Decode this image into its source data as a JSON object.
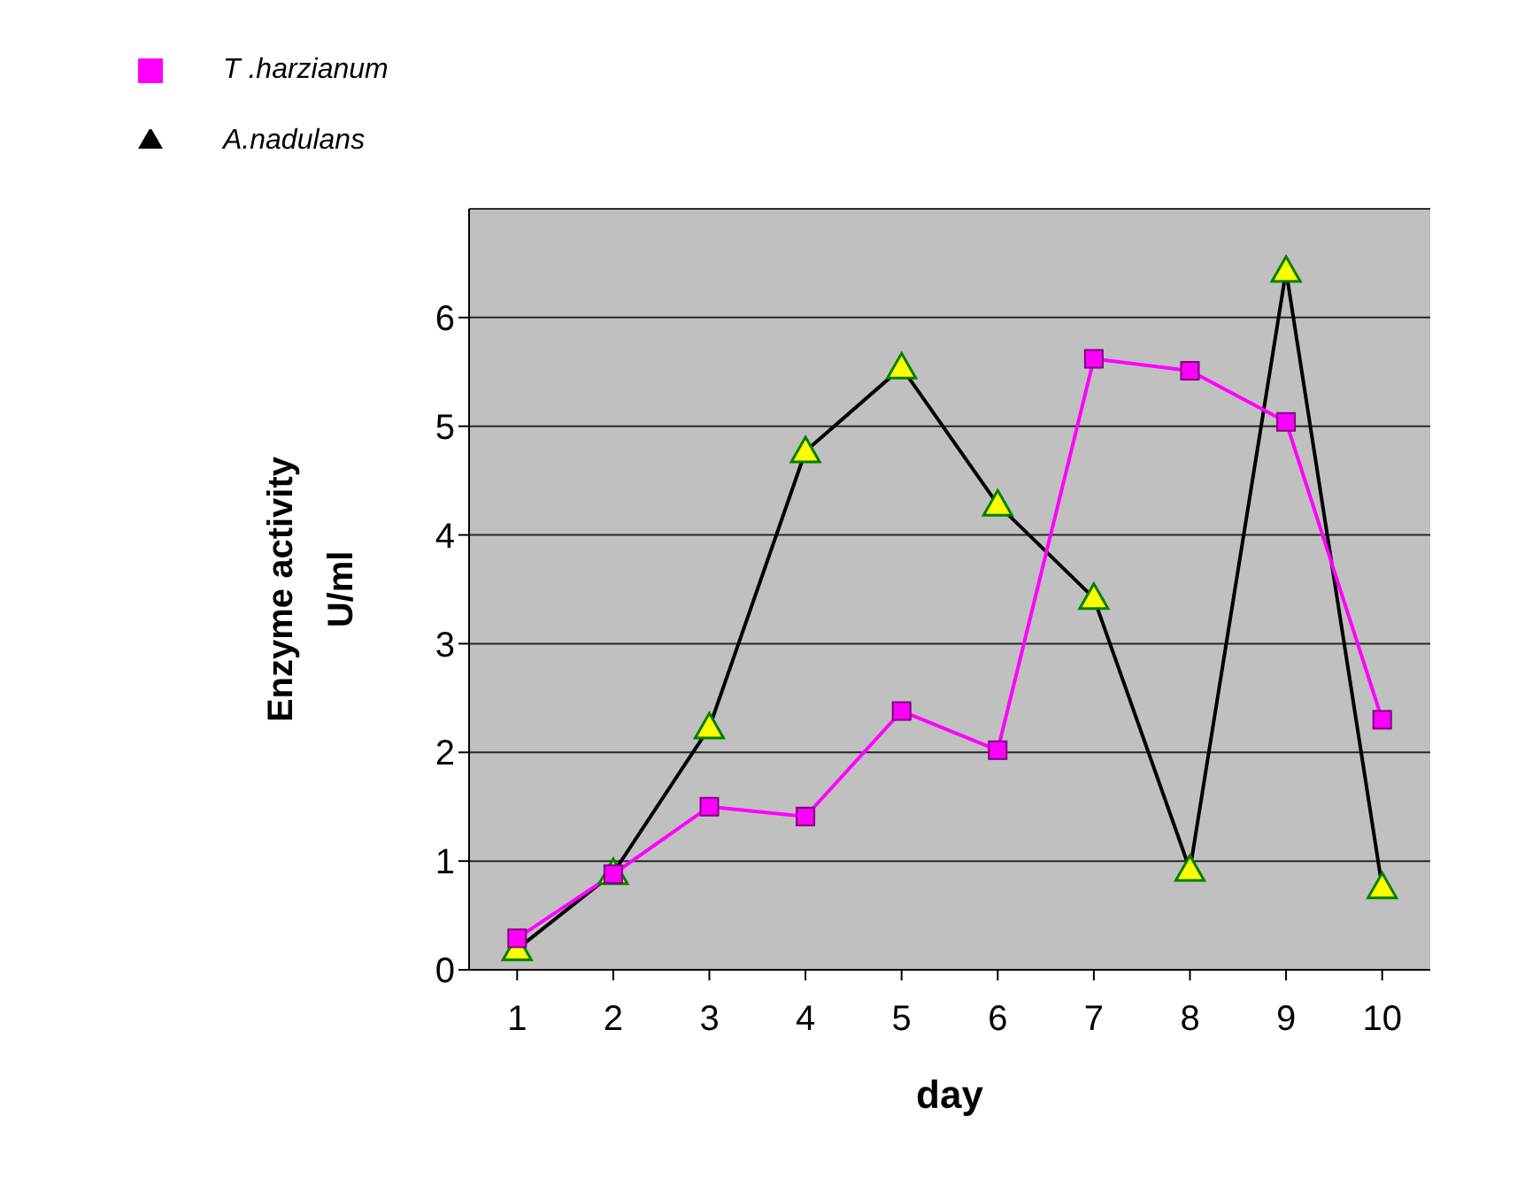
{
  "chart_data": {
    "type": "line",
    "xlabel": "day",
    "ylabel": "Enzyme activity U/ml",
    "categories": [
      "1",
      "2",
      "3",
      "4",
      "5",
      "6",
      "7",
      "8",
      "9",
      "10"
    ],
    "series": [
      {
        "name": "T .harzianum",
        "color": "#ff00ff",
        "marker": "square",
        "values": [
          0.29,
          0.88,
          1.5,
          1.41,
          2.38,
          2.02,
          5.62,
          5.51,
          5.04,
          2.3
        ]
      },
      {
        "name": "A.nadulans",
        "color": "#000000",
        "marker": "triangle",
        "values": [
          0.19,
          0.89,
          2.23,
          4.77,
          5.54,
          4.28,
          3.42,
          0.92,
          6.43,
          0.76
        ]
      }
    ],
    "ylim": [
      0,
      7
    ],
    "yticks": [
      0,
      1,
      2,
      3,
      4,
      5,
      6
    ],
    "grid": "y",
    "legend": "top left"
  }
}
